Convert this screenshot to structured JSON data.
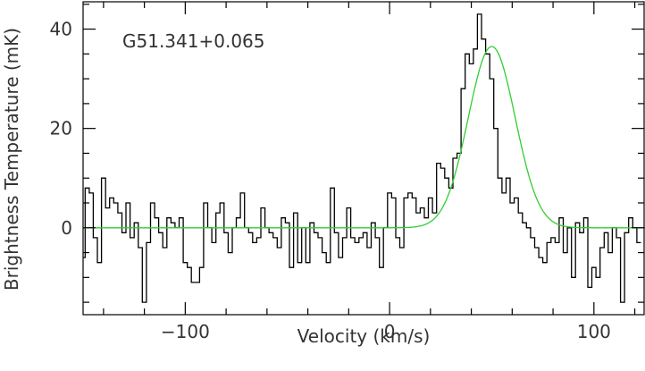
{
  "chart_data": {
    "type": "line",
    "xlabel": "Velocity (km/s)",
    "ylabel": "Brightness Temperature (mK)",
    "annotation": "G51.341+0.065",
    "xlim": [
      -150,
      125
    ],
    "ylim": [
      -17.5,
      45.5
    ],
    "x_ticks": [
      -100,
      0,
      100
    ],
    "y_ticks": [
      0,
      20,
      40
    ],
    "x_tick_labels": [
      "−100",
      "0",
      "100"
    ],
    "y_tick_labels": [
      "0",
      "20",
      "40"
    ],
    "grid": false,
    "legend": false,
    "colors": {
      "spectrum": "#000000",
      "fit": "#32cd32"
    },
    "series": [
      {
        "style": "step",
        "x": [
          -150,
          -148,
          -146,
          -144,
          -142,
          -140,
          -138,
          -136,
          -134,
          -132,
          -130,
          -128,
          -126,
          -124,
          -122,
          -120,
          -118,
          -116,
          -114,
          -112,
          -110,
          -108,
          -106,
          -104,
          -102,
          -100,
          -98,
          -96,
          -94,
          -92,
          -90,
          -88,
          -86,
          -84,
          -82,
          -80,
          -78,
          -76,
          -74,
          -72,
          -70,
          -68,
          -66,
          -64,
          -62,
          -60,
          -58,
          -56,
          -54,
          -52,
          -50,
          -48,
          -46,
          -44,
          -42,
          -40,
          -38,
          -36,
          -34,
          -32,
          -30,
          -28,
          -26,
          -24,
          -22,
          -20,
          -18,
          -16,
          -14,
          -12,
          -10,
          -8,
          -6,
          -4,
          -2,
          0,
          2,
          4,
          6,
          8,
          10,
          12,
          14,
          16,
          18,
          20,
          22,
          24,
          26,
          28,
          30,
          32,
          34,
          36,
          38,
          40,
          42,
          44,
          46,
          48,
          50,
          52,
          54,
          56,
          58,
          60,
          62,
          64,
          66,
          68,
          70,
          72,
          74,
          76,
          78,
          80,
          82,
          84,
          86,
          88,
          90,
          92,
          94,
          96,
          98,
          100,
          102,
          104,
          106,
          108,
          110,
          112,
          114,
          116,
          118,
          120,
          122
        ],
        "values": [
          -6,
          8,
          7,
          -2,
          -7,
          10,
          4,
          6,
          5,
          3,
          -1,
          5,
          -2,
          1,
          -4,
          -15,
          -3,
          5,
          2,
          -1,
          -4,
          2,
          1,
          0,
          2,
          -7,
          -8,
          -11,
          -11,
          -8,
          5,
          0,
          -3,
          3,
          5,
          -1,
          -5,
          0,
          2,
          7,
          0,
          -1,
          -3,
          -2,
          4,
          0,
          -1,
          -2,
          -4,
          2,
          1,
          -8,
          3,
          -7,
          0,
          -7,
          1,
          -1,
          -2,
          -5,
          -7,
          8,
          -1,
          -6,
          -2,
          4,
          -2,
          -3,
          -2,
          -1,
          -4,
          1,
          -2,
          -8,
          0,
          7,
          6,
          -2,
          -4,
          6,
          7,
          6,
          3,
          4,
          2,
          6,
          3,
          13,
          12,
          10,
          8,
          14,
          15,
          28,
          35,
          33,
          36,
          43,
          38,
          35,
          30,
          20,
          10,
          7,
          10,
          5,
          6,
          3,
          1,
          0,
          -2,
          -4,
          -6,
          -7,
          -3,
          -2,
          -3,
          2,
          -5,
          0,
          -10,
          1,
          -1,
          2,
          -12,
          -8,
          -10,
          -4,
          -1,
          -5,
          0,
          -2,
          -15,
          -1,
          2,
          0,
          -3
        ]
      },
      {
        "style": "gaussian_fit",
        "amplitude": 36.5,
        "center": 50,
        "sigma": 11.5,
        "baseline": 0
      }
    ]
  }
}
